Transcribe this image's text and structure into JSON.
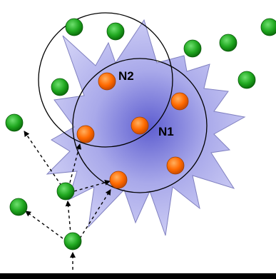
{
  "labels": {
    "n1": "N1",
    "n2": "N2"
  },
  "colors": {
    "star_fill_center": "#6f6fd8",
    "star_fill_edge": "#c9c9f3",
    "star_stroke": "#7a7ab8",
    "active_node": "#ff6a00",
    "idle_node": "#22aa22",
    "range_circle": "#000000",
    "arrow": "#000000",
    "baseline": "#000000"
  },
  "legend": {
    "active_node_icon": "orange-node",
    "idle_node_icon": "green-node"
  }
}
